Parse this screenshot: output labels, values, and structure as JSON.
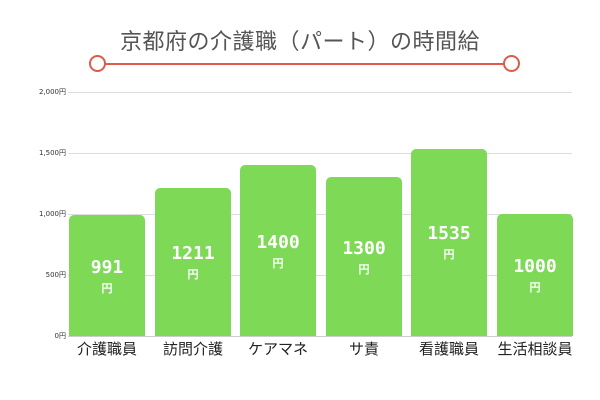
{
  "title": "京都府の介護職（パート）の時間給",
  "colors": {
    "bar": "#7ed957",
    "title_line": "#e05a4a",
    "title_text": "#555555"
  },
  "chart_data": {
    "type": "bar",
    "title": "京都府の介護職（パート）の時間給",
    "categories": [
      "介護職員",
      "訪問介護",
      "ケアマネ",
      "サ責",
      "看護職員",
      "生活相談員"
    ],
    "values": [
      991,
      1211,
      1400,
      1300,
      1535,
      1000
    ],
    "data_labels": [
      "991",
      "1211",
      "1400",
      "1300",
      "1535",
      "1000"
    ],
    "unit": "円",
    "xlabel": "",
    "ylabel": "",
    "ylim": [
      0,
      2000
    ],
    "yticks": [
      "0円",
      "500円",
      "1,000円",
      "1,500円",
      "2,000円"
    ],
    "grid": true,
    "legend": null
  }
}
